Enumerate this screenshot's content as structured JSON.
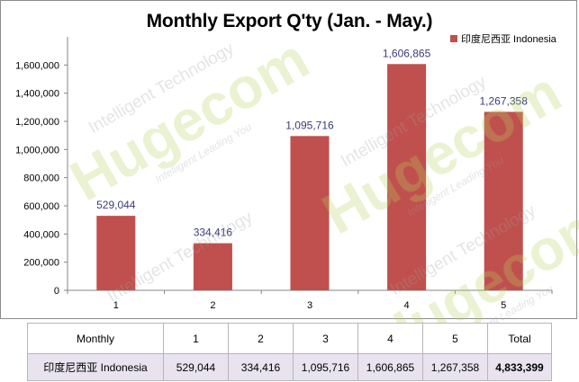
{
  "chart_data": {
    "type": "bar",
    "title": "Monthly Export Q'ty (Jan. - May.)",
    "categories": [
      "1",
      "2",
      "3",
      "4",
      "5"
    ],
    "series": [
      {
        "name": "印度尼西亚 Indonesia",
        "values": [
          529044,
          334416,
          1095716,
          1606865,
          1267358
        ]
      }
    ],
    "data_labels": [
      "529,044",
      "334,416",
      "1,095,716",
      "1,606,865",
      "1,267,358"
    ],
    "ylim": [
      0,
      1800000
    ],
    "yticks": [
      "0",
      "200,000",
      "400,000",
      "600,000",
      "800,000",
      "1,000,000",
      "1,200,000",
      "1,400,000",
      "1,600,000"
    ],
    "ytick_values": [
      0,
      200000,
      400000,
      600000,
      800000,
      1000000,
      1200000,
      1400000,
      1600000
    ],
    "grid": false,
    "legend_position": "top-right",
    "bar_color": "#c0504d",
    "label_color": "#3b3b7a"
  },
  "table": {
    "header": [
      "Monthly",
      "1",
      "2",
      "3",
      "4",
      "5",
      "Total"
    ],
    "row_label": "印度尼西亚 Indonesia",
    "row_values": [
      "529,044",
      "334,416",
      "1,095,716",
      "1,606,865",
      "1,267,358",
      "4,833,399"
    ]
  },
  "watermark": {
    "brand": "Hugecom",
    "line1": "Intelligent Technology",
    "line2": "Intelligent Leading You"
  }
}
